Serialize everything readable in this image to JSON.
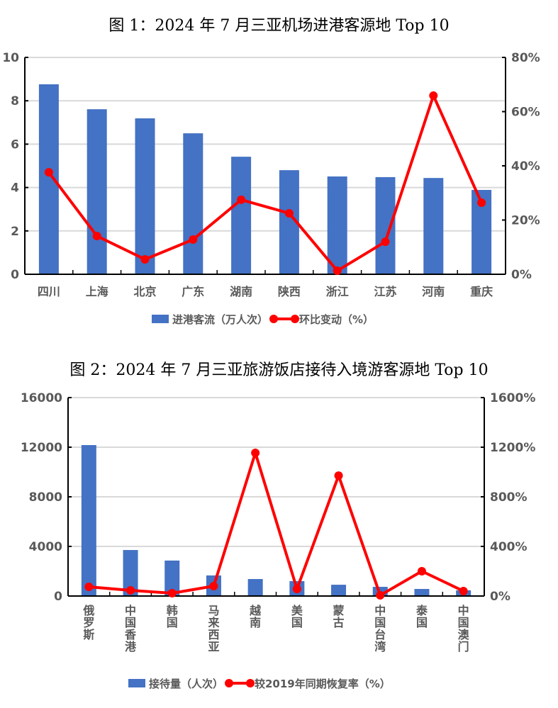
{
  "chart_data": [
    {
      "type": "bar+line",
      "title": "图 1：2024 年 7 月三亚机场进港客源地 Top 10",
      "categories": [
        "四川",
        "上海",
        "北京",
        "广东",
        "湖南",
        "陕西",
        "浙江",
        "江苏",
        "河南",
        "重庆"
      ],
      "series": [
        {
          "name": "进港客流（万人次）",
          "type": "bar",
          "axis": "left",
          "color": "#4472C4",
          "values": [
            8.76,
            7.61,
            7.19,
            6.5,
            5.42,
            4.8,
            4.51,
            4.48,
            4.44,
            3.89
          ]
        },
        {
          "name": "环比变动（%）",
          "type": "line",
          "axis": "right",
          "color": "#FF0000",
          "values": [
            37.6,
            14.1,
            5.5,
            12.8,
            27.5,
            22.5,
            1.3,
            12.0,
            65.9,
            26.4
          ]
        }
      ],
      "ylim": [
        0,
        10
      ],
      "yticks": [
        "0",
        "2",
        "4",
        "6",
        "8",
        "10"
      ],
      "y2lim": [
        0,
        80
      ],
      "y2ticks": [
        "0%",
        "20%",
        "40%",
        "60%",
        "80%"
      ],
      "grid": true,
      "legend": "bottom"
    },
    {
      "type": "bar+line",
      "title": "图 2：2024 年 7 月三亚旅游饭店接待入境游客源地 Top 10",
      "categories": [
        "俄罗斯",
        "中国香港",
        "韩国",
        "马来西亚",
        "越南",
        "美国",
        "蒙古",
        "中国台湾",
        "泰国",
        "中国澳门"
      ],
      "series": [
        {
          "name": "接待量（人次）",
          "type": "bar",
          "axis": "left",
          "color": "#4472C4",
          "values": [
            12170,
            3710,
            2860,
            1660,
            1370,
            1200,
            910,
            740,
            570,
            460
          ]
        },
        {
          "name": "较2019年同期恢复率（%）",
          "type": "line",
          "axis": "right",
          "color": "#FF0000",
          "values": [
            74,
            46,
            23,
            80,
            1154,
            57,
            971,
            6,
            200,
            40
          ]
        }
      ],
      "ylim": [
        0,
        16000
      ],
      "yticks": [
        "0",
        "4000",
        "8000",
        "12000",
        "16000"
      ],
      "y2lim": [
        0,
        1600
      ],
      "y2ticks": [
        "0%",
        "400%",
        "800%",
        "1200%",
        "1600%"
      ],
      "grid": true,
      "legend": "bottom"
    }
  ]
}
